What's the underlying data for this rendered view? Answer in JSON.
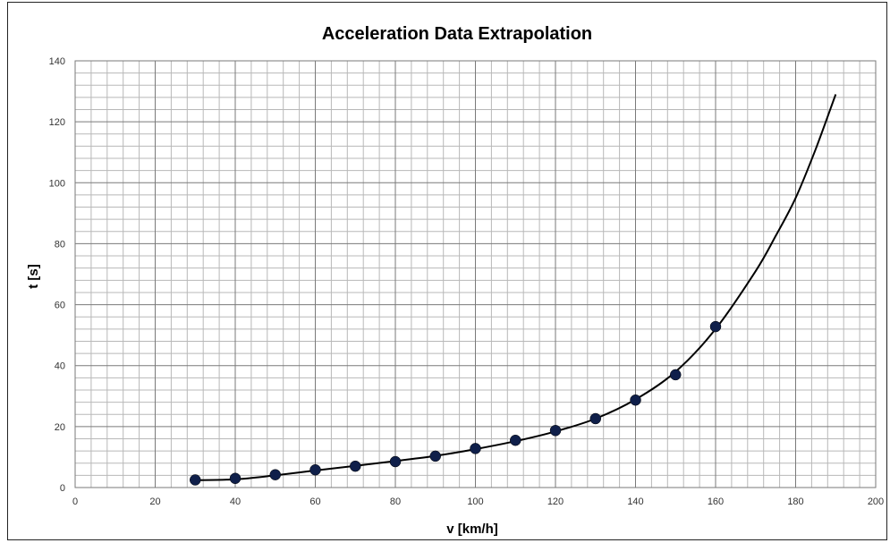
{
  "chart_data": {
    "type": "scatter",
    "title": "Acceleration Data Extrapolation",
    "xlabel": "v [km/h]",
    "ylabel": "t [s]",
    "xlim": [
      0,
      200
    ],
    "ylim": [
      0,
      140
    ],
    "x_ticks": [
      0,
      20,
      40,
      60,
      80,
      100,
      120,
      140,
      160,
      180,
      200
    ],
    "y_ticks": [
      0,
      20,
      40,
      60,
      80,
      100,
      120,
      140
    ],
    "grid": true,
    "legend": "none",
    "series": [
      {
        "kind": "markers",
        "color": "#0f1f4a",
        "x": [
          30,
          40,
          50,
          60,
          70,
          80,
          90,
          100,
          110,
          120,
          130,
          140,
          150,
          160
        ],
        "y": [
          2.5,
          3.0,
          4.2,
          5.8,
          7.0,
          8.5,
          10.3,
          12.8,
          15.5,
          18.7,
          22.6,
          28.7,
          37.0,
          52.8
        ]
      },
      {
        "kind": "trendline",
        "color": "#000000",
        "x": [
          30,
          40,
          50,
          60,
          70,
          80,
          90,
          100,
          110,
          120,
          130,
          140,
          150,
          160,
          170,
          175,
          180,
          185,
          190
        ],
        "y": [
          2.4,
          2.7,
          4.0,
          5.6,
          7.1,
          8.7,
          10.4,
          12.6,
          15.2,
          18.4,
          22.6,
          28.9,
          38.0,
          52.0,
          71.0,
          82.5,
          95.0,
          111.0,
          129.0
        ]
      }
    ]
  }
}
